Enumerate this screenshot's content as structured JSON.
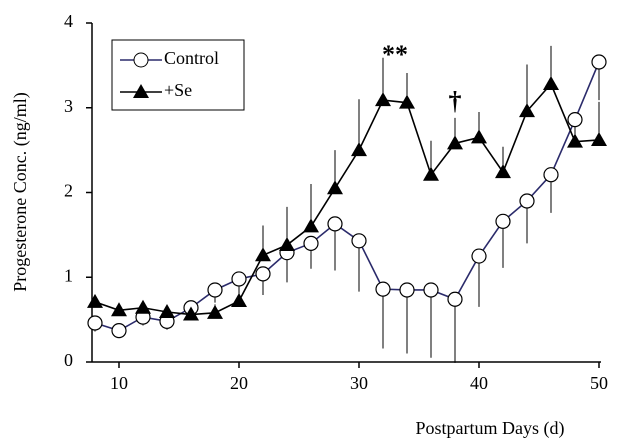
{
  "chart_data": {
    "type": "line",
    "x_label": "Postpartum Days (d)",
    "y_label": "Progesterone Conc. (ng/ml)",
    "x": [
      8,
      10,
      12,
      14,
      16,
      18,
      20,
      22,
      24,
      26,
      28,
      30,
      32,
      34,
      36,
      38,
      40,
      42,
      44,
      46,
      48,
      50
    ],
    "series": [
      {
        "name": "Control",
        "color": "#2b2b6b",
        "marker": "circle",
        "error_direction": "down",
        "values": [
          0.46,
          0.37,
          0.53,
          0.48,
          0.64,
          0.85,
          0.98,
          1.04,
          1.29,
          1.4,
          1.63,
          1.43,
          0.86,
          0.85,
          0.85,
          0.74,
          1.25,
          1.66,
          1.9,
          2.21,
          2.86,
          3.54
        ],
        "errors": [
          0.1,
          0.08,
          0.1,
          0.1,
          0.1,
          0.15,
          0.2,
          0.25,
          0.35,
          0.3,
          0.55,
          0.6,
          0.7,
          0.75,
          0.8,
          0.75,
          0.6,
          0.55,
          0.5,
          0.45,
          0.3,
          0.45
        ]
      },
      {
        "name": "+Se",
        "color": "#000000",
        "marker": "triangle",
        "error_direction": "up",
        "values": [
          0.71,
          0.61,
          0.64,
          0.59,
          0.56,
          0.58,
          0.72,
          1.26,
          1.38,
          1.6,
          2.05,
          2.5,
          3.09,
          3.06,
          2.21,
          2.58,
          2.65,
          2.24,
          2.96,
          3.28,
          2.6,
          2.62
        ],
        "errors": [
          0.08,
          0.08,
          0.08,
          0.08,
          0.08,
          0.1,
          0.15,
          0.35,
          0.45,
          0.5,
          0.45,
          0.6,
          0.5,
          0.35,
          0.4,
          0.3,
          0.3,
          0.3,
          0.55,
          0.45,
          0.3,
          0.45
        ]
      }
    ],
    "annotations": [
      {
        "text": "**",
        "x": 33,
        "y": 3.6
      },
      {
        "text": "†",
        "x": 38,
        "y": 3.05
      }
    ],
    "xlim": [
      8,
      50
    ],
    "xticks": [
      10,
      20,
      30,
      40,
      50
    ],
    "ylim": [
      0,
      4
    ],
    "yticks": [
      0,
      1,
      2,
      3,
      4
    ],
    "legend": "upper-left",
    "grid": false
  }
}
